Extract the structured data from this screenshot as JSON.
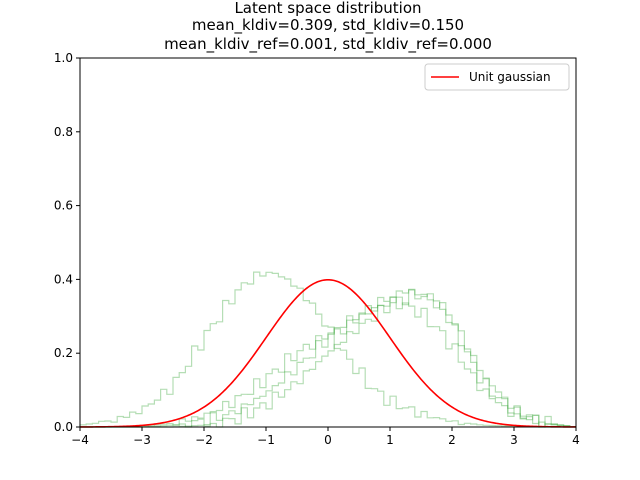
{
  "chart_data": {
    "type": "line",
    "title_lines": [
      "Latent space distribution",
      "mean_kldiv=0.309, std_kldiv=0.150",
      "mean_kldiv_ref=0.001, std_kldiv_ref=0.000"
    ],
    "xlabel": "",
    "ylabel": "",
    "xlim": [
      -4,
      4
    ],
    "ylim": [
      0,
      1.0
    ],
    "x_ticks": [
      -4,
      -3,
      -2,
      -1,
      0,
      1,
      2,
      3,
      4
    ],
    "x_tick_labels": [
      "−4",
      "−3",
      "−2",
      "−1",
      "0",
      "1",
      "2",
      "3",
      "4"
    ],
    "y_ticks": [
      0.0,
      0.2,
      0.4,
      0.6,
      0.8,
      1.0
    ],
    "y_tick_labels": [
      "0.0",
      "0.2",
      "0.4",
      "0.6",
      "0.8",
      "1.0"
    ],
    "grid": false,
    "legend_position": "top-right",
    "legend": [
      {
        "label": "Unit gaussian",
        "color": "#ff0000"
      }
    ],
    "reference_curve": {
      "name": "Unit gaussian",
      "color": "#ff0000",
      "function": "standard normal pdf",
      "x": [
        -4.0,
        -3.5,
        -3.0,
        -2.5,
        -2.0,
        -1.5,
        -1.0,
        -0.5,
        0.0,
        0.5,
        1.0,
        1.5,
        2.0,
        2.5,
        3.0,
        3.5,
        4.0
      ],
      "y": [
        0.0001,
        0.0009,
        0.0044,
        0.0175,
        0.054,
        0.1295,
        0.242,
        0.3521,
        0.3989,
        0.3521,
        0.242,
        0.1295,
        0.054,
        0.0175,
        0.0044,
        0.0009,
        0.0001
      ]
    },
    "histogram_color": "#2ca02c",
    "histogram_opacity": 0.35,
    "histograms": [
      {
        "x": [
          -4.0,
          -3.5,
          -3.0,
          -2.5,
          -2.0,
          -1.5,
          -1.25,
          -1.0,
          -0.75,
          -0.5,
          -0.25,
          0.0,
          0.25,
          0.5,
          0.75,
          1.0,
          1.5,
          2.0,
          2.5,
          3.0
        ],
        "y": [
          0.005,
          0.015,
          0.045,
          0.11,
          0.24,
          0.36,
          0.4,
          0.42,
          0.41,
          0.38,
          0.33,
          0.27,
          0.2,
          0.15,
          0.1,
          0.07,
          0.035,
          0.015,
          0.005,
          0.002
        ]
      },
      {
        "x": [
          -3.0,
          -2.5,
          -2.0,
          -1.5,
          -1.0,
          -0.5,
          0.0,
          0.5,
          0.75,
          1.0,
          1.25,
          1.5,
          1.75,
          2.0,
          2.25,
          2.5,
          3.0,
          3.5
        ],
        "y": [
          0.003,
          0.01,
          0.03,
          0.07,
          0.13,
          0.2,
          0.25,
          0.3,
          0.32,
          0.34,
          0.33,
          0.31,
          0.27,
          0.22,
          0.16,
          0.1,
          0.035,
          0.008
        ]
      },
      {
        "x": [
          -2.5,
          -2.0,
          -1.5,
          -1.0,
          -0.5,
          0.0,
          0.5,
          0.75,
          1.0,
          1.25,
          1.5,
          1.75,
          2.0,
          2.25,
          2.5,
          3.0,
          3.5
        ],
        "y": [
          0.005,
          0.015,
          0.04,
          0.09,
          0.16,
          0.24,
          0.3,
          0.33,
          0.35,
          0.37,
          0.36,
          0.34,
          0.28,
          0.2,
          0.12,
          0.04,
          0.01
        ]
      },
      {
        "x": [
          -2.0,
          -1.5,
          -1.0,
          -0.5,
          0.0,
          0.5,
          1.0,
          1.25,
          1.5,
          1.75,
          2.0,
          2.25,
          2.5,
          3.0,
          3.5
        ],
        "y": [
          0.005,
          0.02,
          0.06,
          0.12,
          0.2,
          0.27,
          0.33,
          0.35,
          0.36,
          0.34,
          0.3,
          0.22,
          0.14,
          0.05,
          0.012
        ]
      }
    ]
  }
}
